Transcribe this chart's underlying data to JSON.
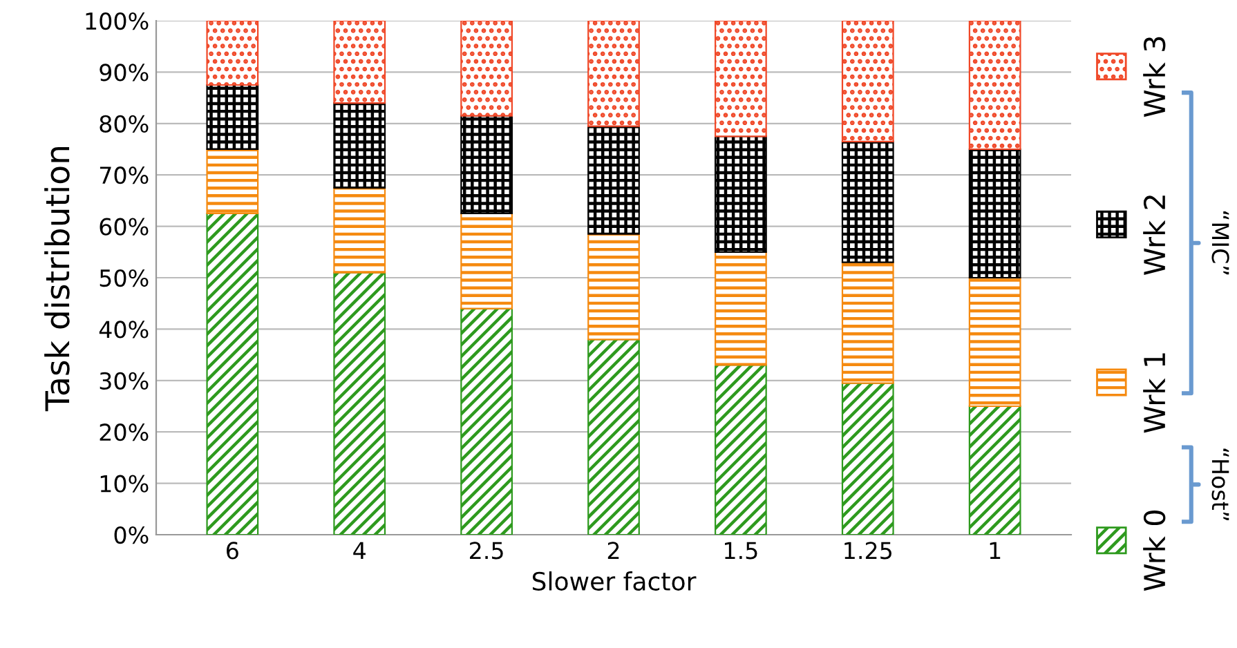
{
  "chart_data": {
    "type": "bar",
    "stacked": true,
    "xlabel": "Slower factor",
    "ylabel": "Task distribution",
    "categories": [
      "6",
      "4",
      "2.5",
      "2",
      "1.5",
      "1.25",
      "1"
    ],
    "series": [
      {
        "name": "Wrk 0",
        "color": "#2e9a1e",
        "values": [
          62.5,
          51,
          44,
          38,
          33,
          29.5,
          25
        ]
      },
      {
        "name": "Wrk 1",
        "color": "#f58a10",
        "values": [
          12.5,
          16.5,
          18.5,
          20.5,
          22,
          23.5,
          25
        ]
      },
      {
        "name": "Wrk 2",
        "color": "#000000",
        "values": [
          12.5,
          16.5,
          19,
          21,
          22.5,
          23.5,
          25
        ]
      },
      {
        "name": "Wrk 3",
        "color": "#f04828",
        "values": [
          12.5,
          16,
          18.5,
          20.5,
          22.5,
          23.5,
          25
        ]
      }
    ],
    "ylim": [
      0,
      100
    ],
    "yticks": [
      {
        "value": 0,
        "label": "0%"
      },
      {
        "value": 10,
        "label": "10%"
      },
      {
        "value": 20,
        "label": "20%"
      },
      {
        "value": 30,
        "label": "30%"
      },
      {
        "value": 40,
        "label": "40%"
      },
      {
        "value": 50,
        "label": "50%"
      },
      {
        "value": 60,
        "label": "60%"
      },
      {
        "value": 70,
        "label": "70%"
      },
      {
        "value": 80,
        "label": "80%"
      },
      {
        "value": 90,
        "label": "90%"
      },
      {
        "value": 100,
        "label": "100%"
      }
    ],
    "grid": "y",
    "legend": "right",
    "annotations": [
      "“MIC”",
      "“Host”"
    ]
  }
}
